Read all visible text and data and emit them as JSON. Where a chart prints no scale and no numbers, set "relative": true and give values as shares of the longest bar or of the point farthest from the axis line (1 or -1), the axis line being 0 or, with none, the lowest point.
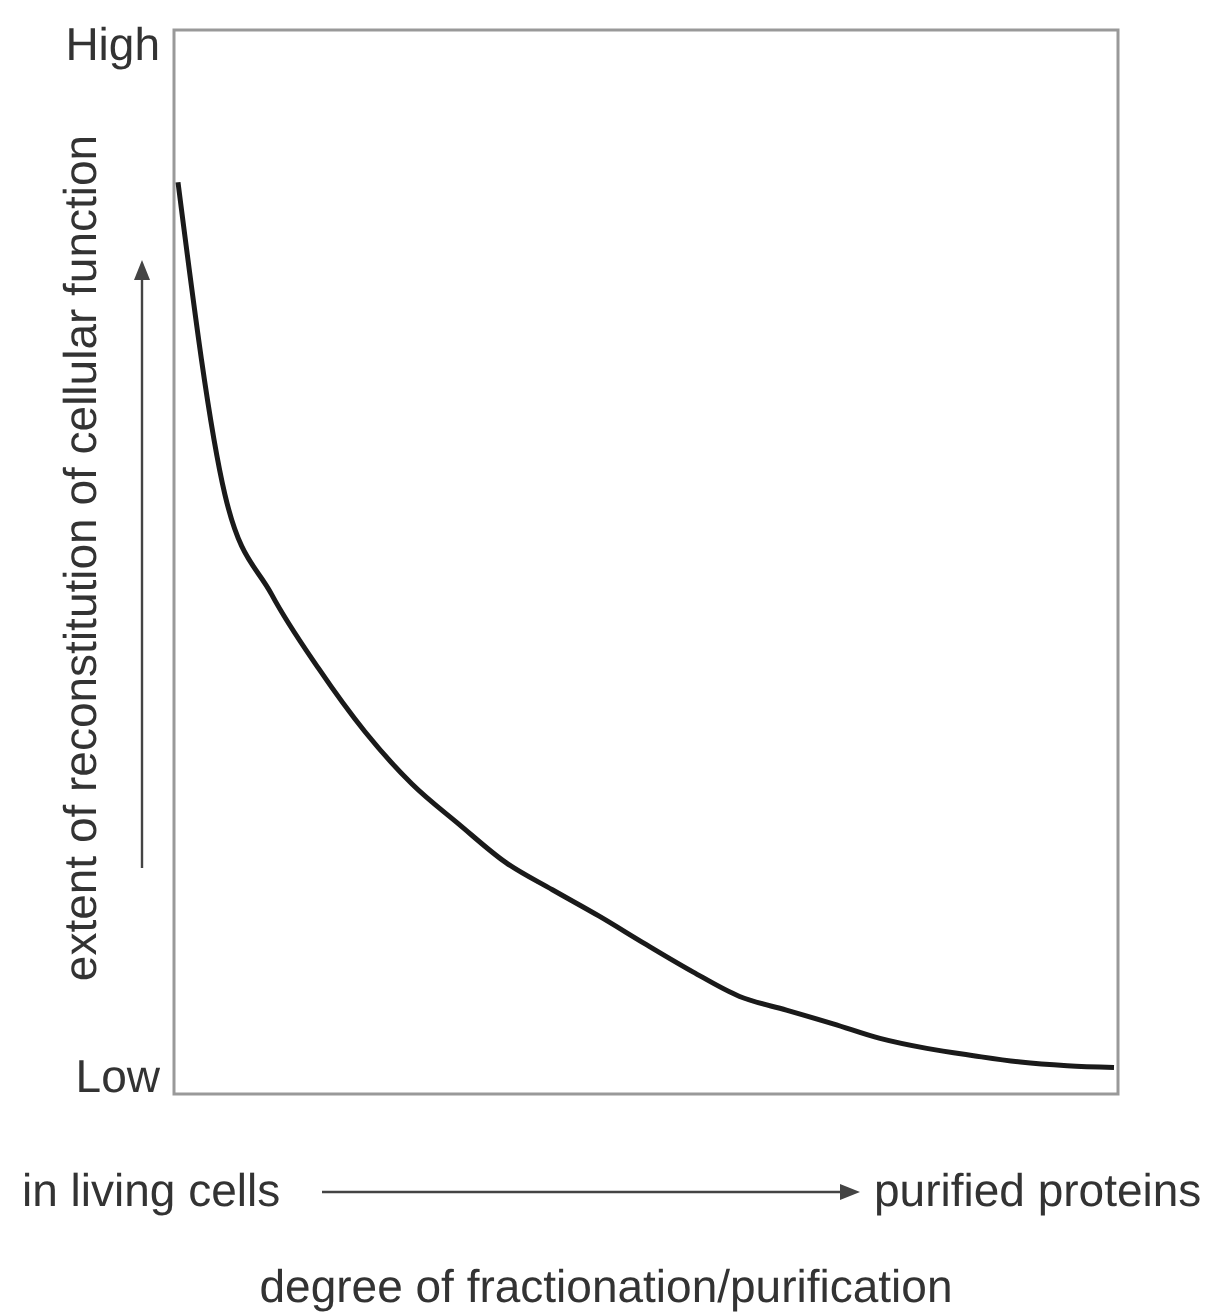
{
  "chart_data": {
    "type": "line",
    "relative": true,
    "xlabel": "degree of fractionation/purification",
    "ylabel": "extent of reconstitution of cellular function",
    "annotations": [
      "High",
      "Low",
      "in living cells",
      "purified proteins"
    ],
    "categories": [
      null,
      null,
      null,
      null,
      null,
      null,
      null,
      null,
      null,
      null,
      null,
      null,
      null,
      null,
      null,
      null,
      null,
      null,
      null,
      null,
      null
    ],
    "series": [
      {
        "color": "#1a1a1a",
        "values": [
          1.0,
          0.658,
          0.548,
          0.467,
          0.397,
          0.34,
          0.296,
          0.254,
          0.224,
          0.195,
          0.164,
          0.134,
          0.107,
          0.092,
          0.077,
          0.061,
          0.05,
          0.042,
          0.035,
          0.031,
          0.029
        ]
      }
    ],
    "grid": false,
    "marker": "none",
    "line_style": "solid"
  }
}
